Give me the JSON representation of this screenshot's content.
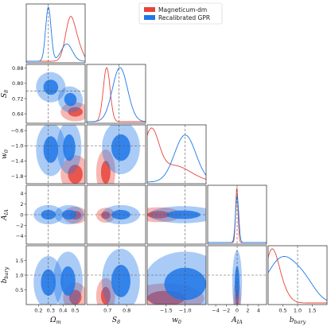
{
  "chart_data": {
    "type": "corner",
    "parameters": [
      {
        "key": "om",
        "label": "Ωm",
        "sub": "m",
        "main": "Ω",
        "range": [
          0.1,
          0.58
        ],
        "ticks": [
          0.2,
          0.3,
          0.4,
          0.5
        ],
        "tick_labels": [
          "0.2",
          "0.3",
          "0.4",
          "0.5"
        ],
        "truth": 0.28
      },
      {
        "key": "s8",
        "label": "S8",
        "sub": "8",
        "main": "S",
        "range": [
          0.59,
          0.9
        ],
        "ticks": [
          0.64,
          0.72,
          0.8,
          0.88
        ],
        "tick_labels": [
          "0.64",
          "0.72",
          "0.80",
          "0.88"
        ],
        "xticks": [
          0.7,
          0.8
        ],
        "xtick_labels": [
          "0.7",
          "0.8"
        ],
        "truth": 0.76
      },
      {
        "key": "w0",
        "label": "w0",
        "sub": "0",
        "main": "w",
        "range": [
          -2.0,
          -0.45
        ],
        "ticks": [
          -1.8,
          -1.4,
          -1.0,
          -0.6
        ],
        "tick_labels": [
          "−1.8",
          "−1.4",
          "−1.0",
          "−0.6"
        ],
        "xticks": [
          -1.5,
          -1.0
        ],
        "xtick_labels": [
          "−1.5",
          "−1.0"
        ],
        "truth": -1.0
      },
      {
        "key": "aia",
        "label": "AIA",
        "sub": "IA",
        "main": "A",
        "range": [
          -5.5,
          5.5
        ],
        "ticks": [
          -4,
          -2,
          0,
          2,
          4
        ],
        "tick_labels": [
          "−4",
          "−2",
          "0",
          "2",
          "4"
        ],
        "xticks": [
          -4,
          -2,
          0,
          2,
          4
        ],
        "xtick_labels": [
          "−4",
          "−2",
          "0",
          "2",
          "4"
        ],
        "truth": 0.0
      },
      {
        "key": "bbary",
        "label": "bbary",
        "sub": "bary",
        "main": "b",
        "range": [
          0.0,
          2.0
        ],
        "ticks": [
          0.5,
          1.0,
          1.5
        ],
        "tick_labels": [
          "0.5",
          "1.0",
          "1.5"
        ],
        "truth": 1.0
      }
    ],
    "series": [
      {
        "name": "Magneticum-dm",
        "color": "#e8443a"
      },
      {
        "name": "Recalibrated GPR",
        "color": "#1f77e8"
      }
    ],
    "legend_position": "top-right",
    "truth_lines": "dashed",
    "marginals": {
      "om": {
        "Magneticum-dm": [
          [
            0.46,
            0.04,
            0.8,
            0.0
          ],
          [
            0.53,
            0.035,
            0.2,
            0.0
          ]
        ],
        "Recalibrated GPR": [
          [
            0.28,
            0.022,
            1.0,
            0.0
          ],
          [
            0.43,
            0.045,
            0.32,
            0.0
          ]
        ]
      },
      "s8": {
        "Magneticum-dm": [
          [
            0.695,
            0.018,
            1.0,
            0.0
          ]
        ],
        "Recalibrated GPR": [
          [
            0.765,
            0.04,
            1.0,
            0.0
          ]
        ]
      },
      "w0": {
        "Magneticum-dm": [
          [
            -1.9,
            0.2,
            1.0,
            0.0
          ],
          [
            -1.3,
            0.45,
            0.35,
            0.0
          ]
        ],
        "Recalibrated GPR": [
          [
            -1.0,
            0.28,
            1.0,
            0.0
          ]
        ]
      },
      "aia": {
        "Magneticum-dm": [
          [
            -0.05,
            0.22,
            1.0,
            0.0
          ]
        ],
        "Recalibrated GPR": [
          [
            0.0,
            0.3,
            0.85,
            0.0
          ]
        ]
      },
      "bbary": {
        "Magneticum-dm": [
          [
            0.1,
            0.22,
            1.0,
            0.0
          ],
          [
            0.4,
            0.25,
            0.35,
            0.0
          ]
        ],
        "Recalibrated GPR": [
          [
            0.5,
            0.55,
            1.0,
            0.0
          ],
          [
            1.3,
            0.35,
            0.25,
            0.0
          ]
        ]
      }
    },
    "contours": {
      "s8|om": {
        "Magneticum-dm": [
          [
            0.5,
            0.65,
            0.06,
            0.025,
            0.0
          ]
        ],
        "Recalibrated GPR": [
          [
            0.3,
            0.78,
            0.06,
            0.04,
            -0.35
          ],
          [
            0.46,
            0.715,
            0.05,
            0.035,
            -0.3
          ]
        ]
      },
      "w0|om": {
        "Magneticum-dm": [
          [
            0.5,
            -1.75,
            0.06,
            0.25,
            0.0
          ]
        ],
        "Recalibrated GPR": [
          [
            0.3,
            -1.1,
            0.06,
            0.35,
            0.0
          ],
          [
            0.45,
            -1.05,
            0.05,
            0.35,
            0.0
          ]
        ]
      },
      "aia|om": {
        "Magneticum-dm": [
          [
            0.5,
            -0.1,
            0.05,
            0.8,
            0.0
          ]
        ],
        "Recalibrated GPR": [
          [
            0.28,
            0.0,
            0.06,
            0.9,
            0.0
          ],
          [
            0.45,
            0.0,
            0.06,
            0.9,
            0.0
          ]
        ]
      },
      "bbary|om": {
        "Magneticum-dm": [
          [
            0.5,
            0.25,
            0.05,
            0.25,
            0.0
          ]
        ],
        "Recalibrated GPR": [
          [
            0.28,
            0.75,
            0.06,
            0.45,
            0.0
          ],
          [
            0.44,
            0.8,
            0.06,
            0.5,
            0.0
          ]
        ]
      },
      "w0|s8": {
        "Magneticum-dm": [
          [
            0.69,
            -1.7,
            0.025,
            0.3,
            0.0
          ]
        ],
        "Recalibrated GPR": [
          [
            0.77,
            -1.05,
            0.05,
            0.35,
            0.0
          ]
        ]
      },
      "aia|s8": {
        "Magneticum-dm": [
          [
            0.69,
            -0.1,
            0.025,
            0.7,
            0.0
          ]
        ],
        "Recalibrated GPR": [
          [
            0.77,
            0.0,
            0.05,
            0.9,
            0.0
          ]
        ]
      },
      "bbary|s8": {
        "Magneticum-dm": [
          [
            0.69,
            0.3,
            0.025,
            0.3,
            0.0
          ]
        ],
        "Recalibrated GPR": [
          [
            0.77,
            0.8,
            0.05,
            0.55,
            0.0
          ]
        ]
      },
      "aia|w0": {
        "Magneticum-dm": [
          [
            -1.7,
            0.0,
            0.3,
            0.7,
            0.0
          ]
        ],
        "Recalibrated GPR": [
          [
            -1.05,
            0.0,
            0.45,
            0.8,
            0.0
          ]
        ]
      },
      "bbary|w0": {
        "Magneticum-dm": [
          [
            -1.5,
            0.22,
            0.5,
            0.25,
            0.0
          ]
        ],
        "Recalibrated GPR": [
          [
            -1.0,
            0.7,
            0.55,
            0.55,
            0.0
          ]
        ]
      },
      "bbary|aia": {
        "Magneticum-dm": [
          [
            0.0,
            0.25,
            0.35,
            0.3,
            0.0
          ]
        ],
        "Recalibrated GPR": [
          [
            0.0,
            0.75,
            0.45,
            0.55,
            0.0
          ]
        ]
      }
    }
  }
}
